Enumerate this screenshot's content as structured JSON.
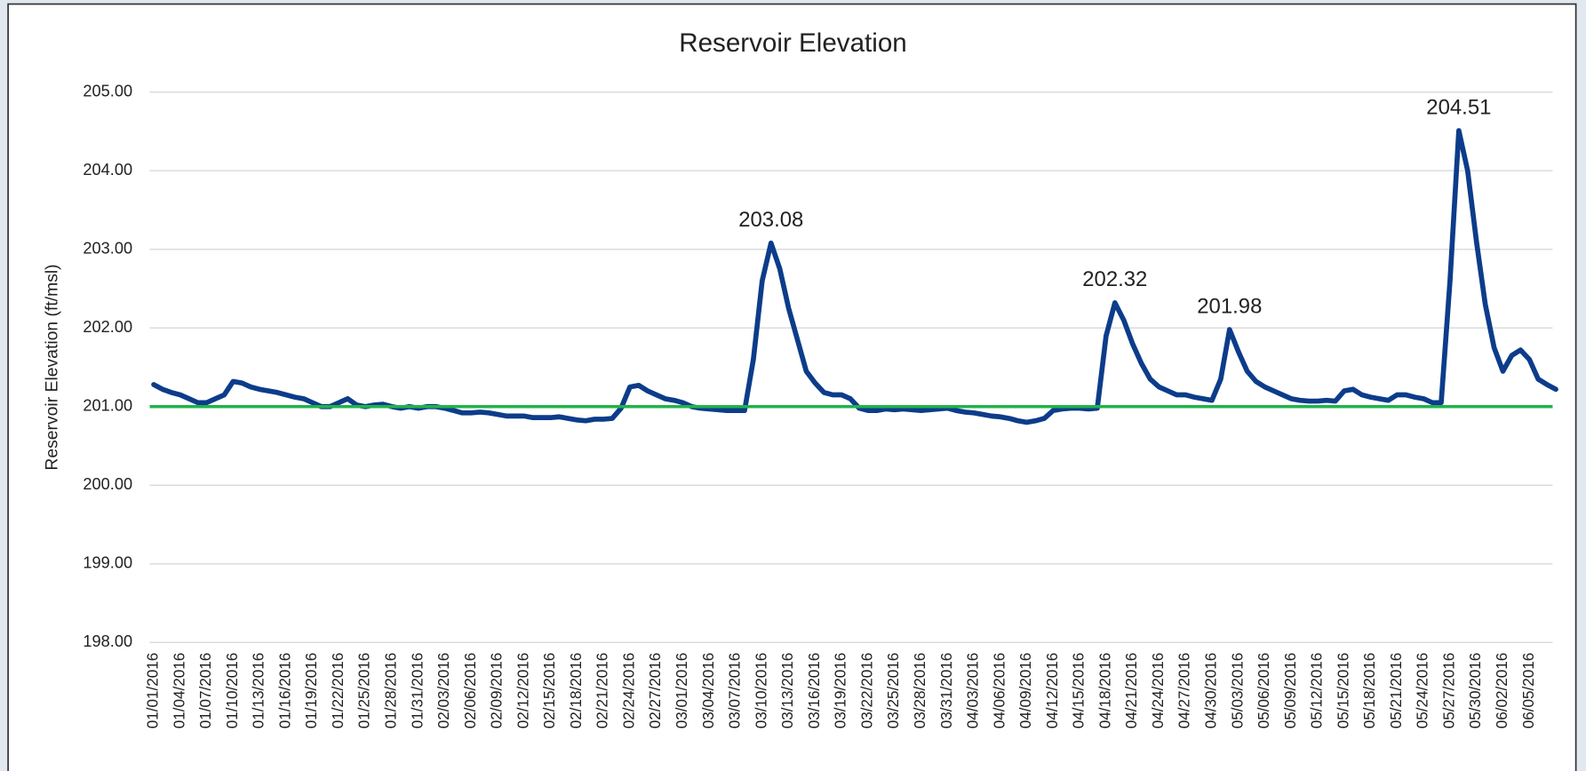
{
  "chart_data": {
    "type": "line",
    "title": "Reservoir Elevation",
    "y_label": "Reservoir Elevation (ft/msl)",
    "categories": [
      "01/01/2016",
      null,
      null,
      "01/04/2016",
      null,
      null,
      "01/07/2016",
      null,
      null,
      "01/10/2016",
      null,
      null,
      "01/13/2016",
      null,
      null,
      "01/16/2016",
      null,
      null,
      "01/19/2016",
      null,
      null,
      "01/22/2016",
      null,
      null,
      "01/25/2016",
      null,
      null,
      "01/28/2016",
      null,
      null,
      "01/31/2016",
      null,
      null,
      "02/03/2016",
      null,
      null,
      "02/06/2016",
      null,
      null,
      "02/09/2016",
      null,
      null,
      "02/12/2016",
      null,
      null,
      "02/15/2016",
      null,
      null,
      "02/18/2016",
      null,
      null,
      "02/21/2016",
      null,
      null,
      "02/24/2016",
      null,
      null,
      "02/27/2016",
      null,
      null,
      "03/01/2016",
      null,
      null,
      "03/04/2016",
      null,
      null,
      "03/07/2016",
      null,
      null,
      "03/10/2016",
      null,
      null,
      "03/13/2016",
      null,
      null,
      "03/16/2016",
      null,
      null,
      "03/19/2016",
      null,
      null,
      "03/22/2016",
      null,
      null,
      "03/25/2016",
      null,
      null,
      "03/28/2016",
      null,
      null,
      "03/31/2016",
      null,
      null,
      "04/03/2016",
      null,
      null,
      "04/06/2016",
      null,
      null,
      "04/09/2016",
      null,
      null,
      "04/12/2016",
      null,
      null,
      "04/15/2016",
      null,
      null,
      "04/18/2016",
      null,
      null,
      "04/21/2016",
      null,
      null,
      "04/24/2016",
      null,
      null,
      "04/27/2016",
      null,
      null,
      "04/30/2016",
      null,
      null,
      "05/03/2016",
      null,
      null,
      "05/06/2016",
      null,
      null,
      "05/09/2016",
      null,
      null,
      "05/12/2016",
      null,
      null,
      "05/15/2016",
      null,
      null,
      "05/18/2016",
      null,
      null,
      "05/21/2016",
      null,
      null,
      "05/24/2016",
      null,
      null,
      "05/27/2016",
      null,
      null,
      "05/30/2016",
      null,
      null,
      "06/02/2016",
      null,
      null,
      "06/05/2016",
      null,
      null,
      null
    ],
    "values": [
      201.28,
      201.22,
      201.18,
      201.15,
      201.1,
      201.05,
      201.05,
      201.1,
      201.15,
      201.32,
      201.3,
      201.25,
      201.22,
      201.2,
      201.18,
      201.15,
      201.12,
      201.1,
      201.05,
      201.0,
      201.0,
      201.05,
      201.1,
      201.02,
      201.0,
      201.02,
      201.03,
      201.0,
      200.98,
      201.0,
      200.98,
      201.0,
      201.0,
      200.98,
      200.95,
      200.92,
      200.92,
      200.93,
      200.92,
      200.9,
      200.88,
      200.88,
      200.88,
      200.86,
      200.86,
      200.86,
      200.87,
      200.85,
      200.83,
      200.82,
      200.84,
      200.84,
      200.85,
      200.98,
      201.25,
      201.27,
      201.2,
      201.15,
      201.1,
      201.08,
      201.05,
      201.0,
      200.98,
      200.97,
      200.96,
      200.95,
      200.95,
      200.95,
      201.6,
      202.6,
      203.08,
      202.75,
      202.25,
      201.85,
      201.45,
      201.3,
      201.18,
      201.15,
      201.15,
      201.1,
      200.98,
      200.95,
      200.95,
      200.97,
      200.96,
      200.97,
      200.96,
      200.95,
      200.96,
      200.97,
      200.98,
      200.95,
      200.93,
      200.92,
      200.9,
      200.88,
      200.87,
      200.85,
      200.82,
      200.8,
      200.82,
      200.85,
      200.95,
      200.97,
      200.98,
      200.98,
      200.97,
      200.98,
      201.9,
      202.32,
      202.1,
      201.8,
      201.55,
      201.35,
      201.25,
      201.2,
      201.15,
      201.15,
      201.12,
      201.1,
      201.08,
      201.35,
      201.98,
      201.7,
      201.45,
      201.32,
      201.25,
      201.2,
      201.15,
      201.1,
      201.08,
      201.07,
      201.07,
      201.08,
      201.07,
      201.2,
      201.22,
      201.15,
      201.12,
      201.1,
      201.08,
      201.15,
      201.15,
      201.12,
      201.1,
      201.05,
      201.05,
      202.6,
      204.51,
      204.0,
      203.1,
      202.3,
      201.75,
      201.45,
      201.65,
      201.72,
      201.6,
      201.35,
      201.28,
      201.22
    ],
    "value_labels": [
      null,
      null,
      null,
      null,
      null,
      null,
      null,
      null,
      null,
      null,
      null,
      null,
      null,
      null,
      null,
      null,
      null,
      null,
      null,
      null,
      null,
      null,
      null,
      null,
      null,
      null,
      null,
      null,
      null,
      null,
      null,
      null,
      null,
      null,
      null,
      null,
      null,
      null,
      null,
      null,
      null,
      null,
      null,
      null,
      null,
      null,
      null,
      null,
      null,
      null,
      null,
      null,
      null,
      null,
      null,
      null,
      null,
      null,
      null,
      null,
      null,
      null,
      null,
      null,
      null,
      null,
      null,
      null,
      null,
      null,
      "203.08",
      null,
      null,
      null,
      null,
      null,
      null,
      null,
      null,
      null,
      null,
      null,
      null,
      null,
      null,
      null,
      null,
      null,
      null,
      null,
      null,
      null,
      null,
      null,
      null,
      null,
      null,
      null,
      null,
      null,
      null,
      null,
      null,
      null,
      null,
      null,
      null,
      null,
      null,
      "202.32",
      null,
      null,
      null,
      null,
      null,
      null,
      null,
      null,
      null,
      null,
      null,
      null,
      "201.98",
      null,
      null,
      null,
      null,
      null,
      null,
      null,
      null,
      null,
      null,
      null,
      null,
      null,
      null,
      null,
      null,
      null,
      null,
      null,
      null,
      null,
      null,
      null,
      null,
      null,
      "204.51",
      null,
      null,
      null,
      null,
      null,
      null,
      null,
      null,
      null,
      null,
      null
    ],
    "color": "#0c3c8a",
    "reference_line": {
      "value": 201,
      "color": "#21b34a"
    },
    "ylim": [
      198,
      205
    ],
    "yticks": [
      {
        "value": 198,
        "label": "198.00"
      },
      {
        "value": 199,
        "label": "199.00"
      },
      {
        "value": 200,
        "label": "200.00"
      },
      {
        "value": 201,
        "label": "201.00"
      },
      {
        "value": 202,
        "label": "202.00"
      },
      {
        "value": 203,
        "label": "203.00"
      },
      {
        "value": 204,
        "label": "204.00"
      },
      {
        "value": 205,
        "label": "205.00"
      }
    ],
    "grid": true
  }
}
